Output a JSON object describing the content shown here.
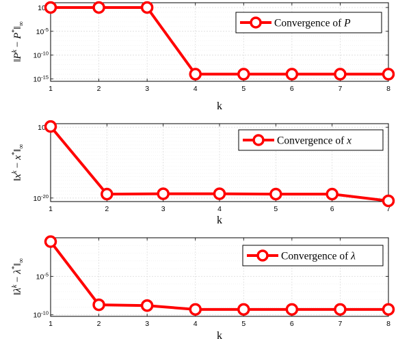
{
  "chart_data": [
    {
      "type": "line",
      "xlabel": "k",
      "ylabel": "‖P^k − P*‖∞",
      "xlim": [
        1,
        8
      ],
      "ylim_log10": [
        -15.5,
        1
      ],
      "yscale": "log",
      "x": [
        1,
        2,
        3,
        4,
        5,
        6,
        7,
        8
      ],
      "xtick_labels": [
        "1",
        "2",
        "3",
        "4",
        "5",
        "6",
        "7",
        "8"
      ],
      "ytick_labels": [
        {
          "base": "10",
          "exp": "0",
          "log": 0
        },
        {
          "base": "10",
          "exp": "-5",
          "log": -5
        },
        {
          "base": "10",
          "exp": "-10",
          "log": -10
        },
        {
          "base": "10",
          "exp": "-15",
          "log": -15
        }
      ],
      "series": [
        {
          "name": "Convergence of P",
          "log10_values": [
            0,
            0,
            0,
            -14,
            -14,
            -14,
            -14,
            -14
          ]
        }
      ],
      "legend": {
        "text": "Convergence of ",
        "symbol": "P",
        "position": "top-right"
      },
      "grid": true,
      "color": "#ff0000"
    },
    {
      "type": "line",
      "xlabel": "k",
      "ylabel": "‖x^k − x*‖∞",
      "xlim": [
        1,
        7
      ],
      "ylim_log10": [
        -21,
        1
      ],
      "yscale": "log",
      "x": [
        1,
        2,
        3,
        4,
        5,
        6,
        7
      ],
      "xtick_labels": [
        "1",
        "2",
        "3",
        "4",
        "5",
        "6",
        "7"
      ],
      "ytick_labels": [
        {
          "base": "10",
          "exp": "0",
          "log": 0
        },
        {
          "base": "10",
          "exp": "-20",
          "log": -20
        }
      ],
      "series": [
        {
          "name": "Convergence of x",
          "log10_values": [
            0.2,
            -18.9,
            -18.8,
            -18.8,
            -18.9,
            -18.9,
            -20.8
          ]
        }
      ],
      "legend": {
        "text": "Convergence of ",
        "symbol": "x",
        "position": "top-right"
      },
      "grid": true,
      "color": "#ff0000"
    },
    {
      "type": "line",
      "xlabel": "k",
      "ylabel": "‖λ^k − λ*‖∞",
      "xlim": [
        1,
        8
      ],
      "ylim_log10": [
        -10.2,
        0
      ],
      "yscale": "log",
      "x": [
        1,
        2,
        3,
        4,
        5,
        6,
        7,
        8
      ],
      "xtick_labels": [
        "1",
        "2",
        "3",
        "4",
        "5",
        "6",
        "7",
        "8"
      ],
      "ytick_labels": [
        {
          "base": "10",
          "exp": "-5",
          "log": -5
        },
        {
          "base": "10",
          "exp": "-10",
          "log": -10
        }
      ],
      "series": [
        {
          "name": "Convergence of λ",
          "log10_values": [
            -0.5,
            -8.7,
            -8.8,
            -9.3,
            -9.3,
            -9.3,
            -9.3,
            -9.3
          ]
        }
      ],
      "legend": {
        "text": "Convergence of ",
        "symbol": "λ",
        "position": "top-right"
      },
      "grid": true,
      "color": "#ff0000"
    }
  ]
}
